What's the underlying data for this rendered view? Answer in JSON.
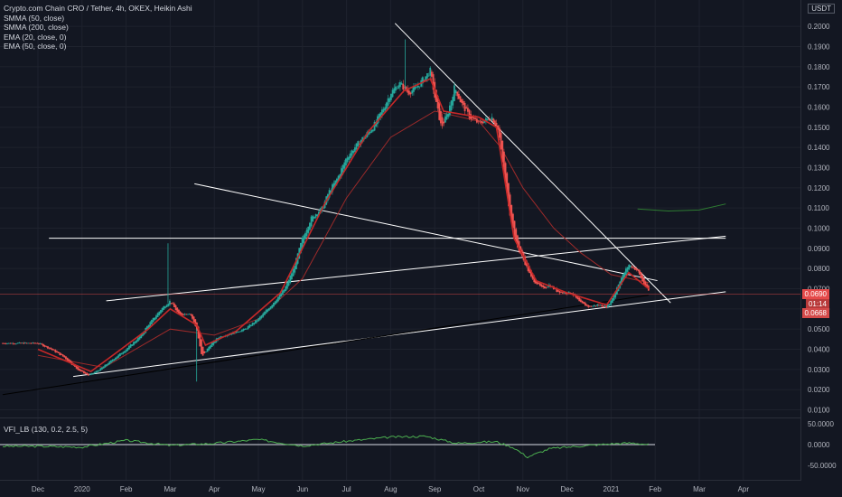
{
  "header": {
    "symbol_line": "Crypto.com Chain CRO / Tether, 4h, OKEX, Heikin Ashi",
    "indicators": [
      "SMMA (50, close)",
      "SMMA (200, close)",
      "EMA (20, close, 0)",
      "EMA (50, close, 0)"
    ],
    "unit": "USDT"
  },
  "vfi": {
    "label": "VFI_LB (130, 0.2, 2.5, 5)",
    "ticks": [
      "50.0000",
      "0.0000",
      "-50.0000"
    ]
  },
  "price_tags": {
    "last": "0.0690",
    "countdown": "01:14",
    "low": "0.0668"
  },
  "colors": {
    "up": "#26a69a",
    "down": "#ef5350",
    "ema_red": "#c62828",
    "smma_dark": "#9c2a2a",
    "vfi": "#4caf50",
    "lines": "#ffffff"
  },
  "chart_data": {
    "type": "line",
    "y_ticks": [
      "0.2000",
      "0.1900",
      "0.1800",
      "0.1700",
      "0.1600",
      "0.1500",
      "0.1400",
      "0.1300",
      "0.1200",
      "0.1100",
      "0.1000",
      "0.0900",
      "0.0800",
      "0.0700",
      "0.0600",
      "0.0500",
      "0.0400",
      "0.0300",
      "0.0200",
      "0.0100"
    ],
    "x_ticks": [
      "Dec",
      "2020",
      "Feb",
      "Mar",
      "Apr",
      "May",
      "Jun",
      "Jul",
      "Aug",
      "Sep",
      "Oct",
      "Nov",
      "Dec",
      "2021",
      "Feb",
      "Mar",
      "Apr"
    ],
    "ylim": [
      0.005,
      0.2065
    ],
    "price_path": [
      [
        0,
        0.043
      ],
      [
        0.3,
        0.04
      ],
      [
        0.6,
        0.036
      ],
      [
        0.9,
        0.03
      ],
      [
        1.15,
        0.027
      ],
      [
        1.4,
        0.03
      ],
      [
        1.7,
        0.035
      ],
      [
        2.0,
        0.04
      ],
      [
        2.3,
        0.046
      ],
      [
        2.5,
        0.052
      ],
      [
        2.8,
        0.06
      ],
      [
        3.0,
        0.064
      ],
      [
        3.2,
        0.057
      ],
      [
        3.45,
        0.058
      ],
      [
        3.6,
        0.05
      ],
      [
        3.72,
        0.036
      ],
      [
        3.9,
        0.042
      ],
      [
        4.1,
        0.046
      ],
      [
        4.4,
        0.048
      ],
      [
        4.7,
        0.05
      ],
      [
        5.0,
        0.055
      ],
      [
        5.3,
        0.062
      ],
      [
        5.6,
        0.07
      ],
      [
        5.8,
        0.08
      ],
      [
        6.0,
        0.095
      ],
      [
        6.2,
        0.105
      ],
      [
        6.45,
        0.11
      ],
      [
        6.6,
        0.118
      ],
      [
        6.8,
        0.125
      ],
      [
        7.0,
        0.135
      ],
      [
        7.3,
        0.143
      ],
      [
        7.6,
        0.15
      ],
      [
        7.85,
        0.16
      ],
      [
        8.0,
        0.167
      ],
      [
        8.2,
        0.172
      ],
      [
        8.4,
        0.167
      ],
      [
        8.6,
        0.17
      ],
      [
        8.9,
        0.178
      ],
      [
        9.0,
        0.165
      ],
      [
        9.15,
        0.15
      ],
      [
        9.3,
        0.157
      ],
      [
        9.45,
        0.17
      ],
      [
        9.6,
        0.162
      ],
      [
        9.8,
        0.155
      ],
      [
        10.0,
        0.152
      ],
      [
        10.3,
        0.155
      ],
      [
        10.45,
        0.148
      ],
      [
        10.55,
        0.13
      ],
      [
        10.7,
        0.108
      ],
      [
        10.85,
        0.092
      ],
      [
        11.0,
        0.085
      ],
      [
        11.2,
        0.075
      ],
      [
        11.45,
        0.07
      ],
      [
        11.6,
        0.072
      ],
      [
        11.75,
        0.069
      ],
      [
        11.9,
        0.068
      ],
      [
        12.1,
        0.068
      ],
      [
        12.3,
        0.063
      ],
      [
        12.5,
        0.061
      ],
      [
        12.7,
        0.062
      ],
      [
        12.9,
        0.061
      ],
      [
        13.0,
        0.064
      ],
      [
        13.2,
        0.074
      ],
      [
        13.4,
        0.082
      ],
      [
        13.6,
        0.079
      ],
      [
        13.75,
        0.072
      ],
      [
        13.85,
        0.069
      ]
    ],
    "ema_path": [
      [
        0,
        0.04
      ],
      [
        1.2,
        0.029
      ],
      [
        2.5,
        0.05
      ],
      [
        3.0,
        0.06
      ],
      [
        3.6,
        0.052
      ],
      [
        3.8,
        0.042
      ],
      [
        4.5,
        0.049
      ],
      [
        5.5,
        0.068
      ],
      [
        6.5,
        0.112
      ],
      [
        7.5,
        0.148
      ],
      [
        8.3,
        0.168
      ],
      [
        8.9,
        0.174
      ],
      [
        9.2,
        0.158
      ],
      [
        10.0,
        0.155
      ],
      [
        10.4,
        0.15
      ],
      [
        10.8,
        0.095
      ],
      [
        11.3,
        0.074
      ],
      [
        12.0,
        0.068
      ],
      [
        12.9,
        0.062
      ],
      [
        13.4,
        0.078
      ],
      [
        13.85,
        0.07
      ]
    ],
    "smma200_path": [
      [
        0,
        0.037
      ],
      [
        1.5,
        0.031
      ],
      [
        3.0,
        0.05
      ],
      [
        4.0,
        0.047
      ],
      [
        5.0,
        0.055
      ],
      [
        6.0,
        0.075
      ],
      [
        7.0,
        0.115
      ],
      [
        8.0,
        0.145
      ],
      [
        9.0,
        0.158
      ],
      [
        10.0,
        0.153
      ],
      [
        10.5,
        0.14
      ],
      [
        11.0,
        0.12
      ],
      [
        11.7,
        0.1
      ],
      [
        12.3,
        0.088
      ],
      [
        13.0,
        0.077
      ],
      [
        13.85,
        0.073
      ]
    ],
    "smma50_ghost": [
      [
        13.6,
        0.1095
      ],
      [
        14.3,
        0.1085
      ],
      [
        15.0,
        0.109
      ],
      [
        15.6,
        0.112
      ]
    ],
    "vfi_series": [
      [
        0,
        -4
      ],
      [
        1,
        -6
      ],
      [
        2,
        10
      ],
      [
        3,
        -2
      ],
      [
        4,
        3
      ],
      [
        5,
        12
      ],
      [
        6,
        -3
      ],
      [
        7,
        8
      ],
      [
        8,
        18
      ],
      [
        8.8,
        20
      ],
      [
        9.5,
        3
      ],
      [
        10,
        6
      ],
      [
        10.4,
        7
      ],
      [
        10.8,
        -8
      ],
      [
        11.1,
        -30
      ],
      [
        11.6,
        -10
      ],
      [
        12,
        -6
      ],
      [
        12.5,
        -2
      ],
      [
        13,
        2
      ],
      [
        13.5,
        4
      ],
      [
        13.85,
        0
      ]
    ],
    "trendlines": [
      {
        "from": [
          8.1,
          0.2015
        ],
        "to": [
          14.35,
          0.063
        ]
      },
      {
        "from": [
          3.55,
          0.122
        ],
        "to": [
          14.05,
          0.074
        ]
      },
      {
        "from": [
          0.25,
          0.095
        ],
        "to": [
          15.6,
          0.095
        ]
      },
      {
        "from": [
          1.55,
          0.064
        ],
        "to": [
          15.6,
          0.096
        ]
      },
      {
        "from": [
          0.8,
          0.0265
        ],
        "to": [
          15.6,
          0.0685
        ]
      },
      {
        "from": [
          -0.8,
          0.0175
        ],
        "to": [
          13.85,
          0.0668
        ]
      }
    ]
  }
}
